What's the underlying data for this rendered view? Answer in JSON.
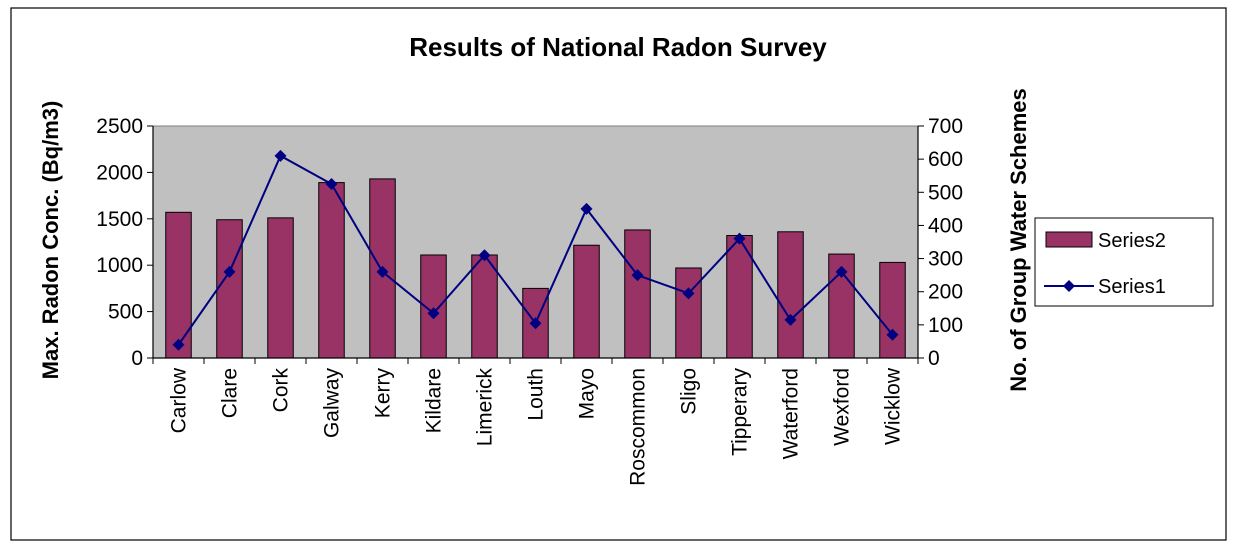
{
  "chart_data": {
    "type": "bar",
    "title": "Results of National Radon Survey",
    "ylabel": "Max. Radon Conc. (Bq/m3)",
    "y2label": "No. of Group Water Schemes",
    "categories": [
      "Carlow",
      "Clare",
      "Cork",
      "Galway",
      "Kerry",
      "Kildare",
      "Limerick",
      "Louth",
      "Mayo",
      "Roscommon",
      "Sligo",
      "Tipperary",
      "Waterford",
      "Wexford",
      "Wicklow"
    ],
    "ylim": [
      0,
      2500
    ],
    "yticks": [
      0,
      500,
      1000,
      1500,
      2000,
      2500
    ],
    "y2lim": [
      0,
      700
    ],
    "y2ticks": [
      0,
      100,
      200,
      300,
      400,
      500,
      600,
      700
    ],
    "grid": false,
    "legend_position": "right",
    "series": [
      {
        "name": "Series2",
        "type": "bar",
        "axis": "left",
        "color": "#993366",
        "values": [
          1570,
          1490,
          1510,
          1890,
          1930,
          1110,
          1110,
          750,
          1215,
          1380,
          970,
          1320,
          1360,
          1120,
          1030
        ]
      },
      {
        "name": "Series1",
        "type": "line",
        "axis": "right",
        "color": "#000080",
        "values": [
          40,
          260,
          610,
          525,
          260,
          135,
          310,
          105,
          450,
          250,
          195,
          360,
          115,
          260,
          70
        ]
      }
    ],
    "plot_background": "#c0c0c0"
  }
}
